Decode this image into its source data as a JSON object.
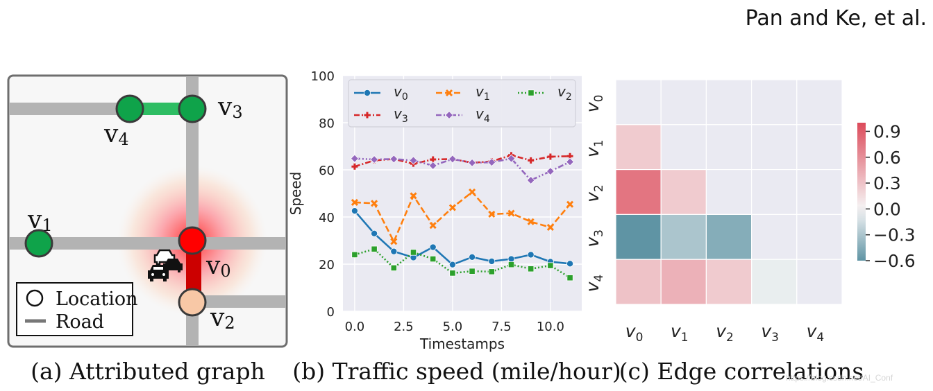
{
  "header": {
    "authors": "Pan and Ke, et al."
  },
  "panel_a": {
    "caption": "(a) Attributed graph",
    "nodes": [
      {
        "id": "v0",
        "label": "v",
        "sub": "0",
        "color": "#ff0000"
      },
      {
        "id": "v1",
        "label": "v",
        "sub": "1",
        "color": "#0fa34a"
      },
      {
        "id": "v2",
        "label": "v",
        "sub": "2",
        "color": "#f8c8a6"
      },
      {
        "id": "v3",
        "label": "v",
        "sub": "3",
        "color": "#0fa34a"
      },
      {
        "id": "v4",
        "label": "v",
        "sub": "4",
        "color": "#0fa34a"
      }
    ],
    "legend": {
      "location": "Location",
      "road": "Road"
    },
    "colors": {
      "road": "#b3b3b3",
      "congested": "#cc0000",
      "link": "#2ebd63",
      "frame": "#6e6e6e"
    }
  },
  "panel_b": {
    "caption": "(b) Traffic speed (mile/hour)",
    "chart_data": {
      "type": "line",
      "xlabel": "Timestamps",
      "ylabel": "Speed",
      "xlim": [
        -0.6,
        11.6
      ],
      "ylim": [
        0,
        100
      ],
      "xticks": [
        0.0,
        2.5,
        5.0,
        7.5,
        10.0
      ],
      "xtick_labels": [
        "0.0",
        "2.5",
        "5.0",
        "7.5",
        "10.0"
      ],
      "yticks": [
        0,
        20,
        40,
        60,
        80,
        100
      ],
      "ytick_labels": [
        "0",
        "20",
        "40",
        "60",
        "80",
        "100"
      ],
      "x": [
        0,
        1,
        2,
        3,
        4,
        5,
        6,
        7,
        8,
        9,
        10,
        11
      ],
      "series": [
        {
          "name": "v",
          "sub": "0",
          "color": "#1f77b4",
          "marker": "circle",
          "dash": "",
          "values": [
            42.6,
            33.0,
            25.4,
            22.8,
            27.2,
            19.8,
            23.0,
            21.2,
            22.2,
            24.0,
            21.0,
            20.2
          ]
        },
        {
          "name": "v",
          "sub": "1",
          "color": "#ff7f0e",
          "marker": "x",
          "dash": "9,4",
          "values": [
            46.2,
            45.8,
            29.6,
            49.0,
            36.4,
            44.0,
            50.6,
            41.2,
            41.6,
            38.0,
            35.6,
            45.4
          ]
        },
        {
          "name": "v",
          "sub": "2",
          "color": "#2ca02c",
          "marker": "square",
          "dash": "2,3",
          "values": [
            24.0,
            26.4,
            18.4,
            25.0,
            22.2,
            16.2,
            17.0,
            16.8,
            19.8,
            18.0,
            19.4,
            14.2
          ]
        },
        {
          "name": "v",
          "sub": "3",
          "color": "#d62728",
          "marker": "plus",
          "dash": "8,3,2,3",
          "values": [
            61.4,
            64.0,
            64.6,
            62.6,
            64.4,
            64.6,
            63.0,
            63.6,
            66.2,
            64.0,
            65.6,
            65.8
          ]
        },
        {
          "name": "v",
          "sub": "4",
          "color": "#9467bd",
          "marker": "diamond",
          "dash": "8,3,2,3,2,3",
          "values": [
            64.8,
            64.4,
            64.6,
            64.0,
            61.8,
            64.6,
            63.0,
            63.2,
            64.8,
            55.6,
            59.4,
            63.4
          ]
        }
      ],
      "legend_position": "top"
    }
  },
  "panel_c": {
    "caption": "(c) Edge correlations",
    "chart_data": {
      "type": "heatmap",
      "row_labels": [
        {
          "t": "v",
          "s": "0"
        },
        {
          "t": "v",
          "s": "1"
        },
        {
          "t": "v",
          "s": "2"
        },
        {
          "t": "v",
          "s": "3"
        },
        {
          "t": "v",
          "s": "4"
        }
      ],
      "col_labels": [
        {
          "t": "v",
          "s": "0"
        },
        {
          "t": "v",
          "s": "1"
        },
        {
          "t": "v",
          "s": "2"
        },
        {
          "t": "v",
          "s": "3"
        },
        {
          "t": "v",
          "s": "4"
        }
      ],
      "values": [
        [
          null,
          null,
          null,
          null,
          null
        ],
        [
          0.25,
          null,
          null,
          null,
          null
        ],
        [
          0.75,
          0.25,
          null,
          null,
          null
        ],
        [
          -0.6,
          -0.3,
          -0.45,
          null,
          null
        ],
        [
          0.3,
          0.4,
          0.25,
          -0.05,
          null
        ]
      ],
      "vmin": -0.6,
      "vmax": 1.0,
      "colorbar_ticks": [
        0.9,
        0.6,
        0.3,
        0.0,
        -0.3,
        -0.6
      ],
      "colorbar_labels": [
        "0.9",
        "0.6",
        "0.3",
        "0.0",
        "−0.3",
        "−0.6"
      ],
      "colors": {
        "pos": "#dc4a5a",
        "neg": "#5f94a4",
        "mid": "#f6f6f6",
        "masked": "#eaeaf2"
      }
    }
  },
  "watermark": "https://blog.csdn.net/AI_Conf"
}
